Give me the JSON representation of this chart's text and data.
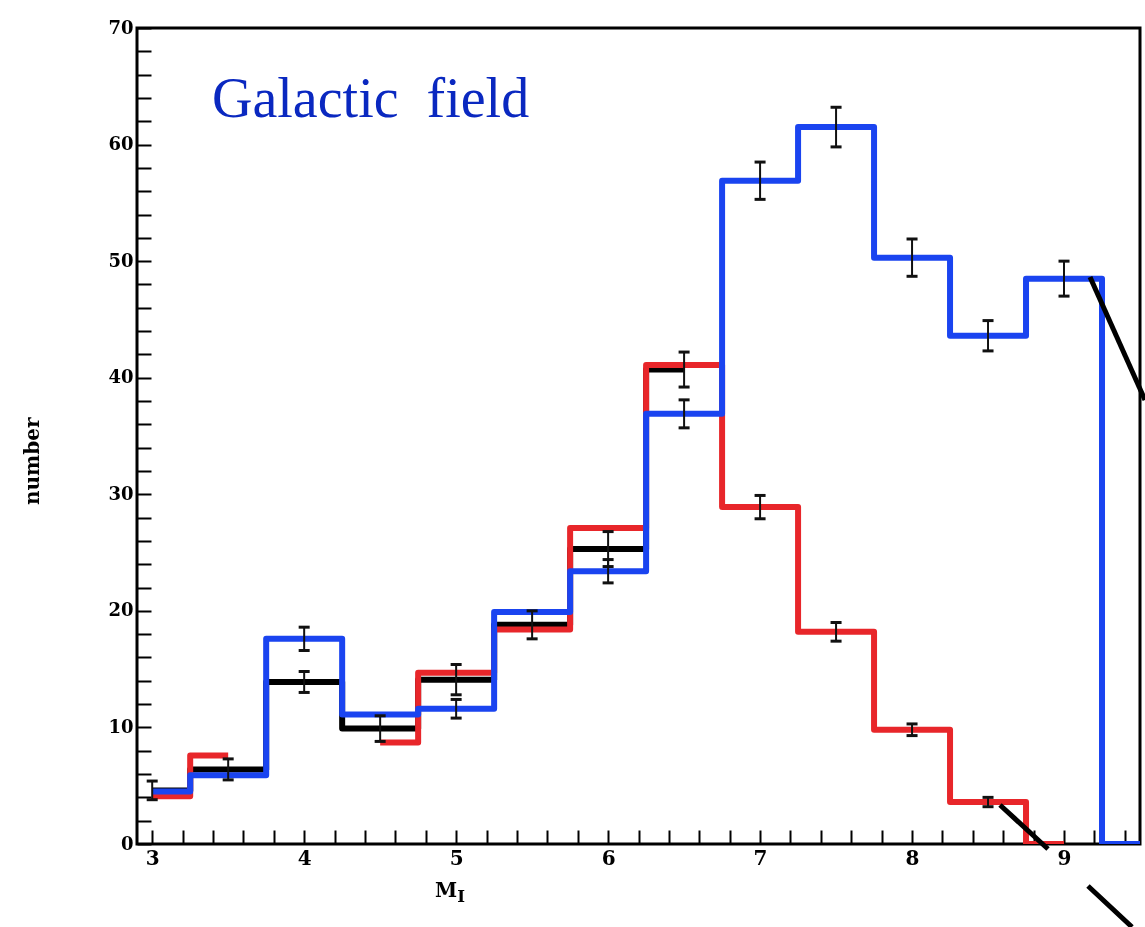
{
  "chart_data": {
    "type": "step",
    "xlabel": "M$_{I}$",
    "ylabel": "number",
    "annotations": [
      "Galactic  field"
    ],
    "x": [
      3,
      3.5,
      4,
      4.5,
      5,
      5.5,
      6,
      6.5,
      7,
      7.5,
      8,
      8.5,
      9,
      9.5
    ],
    "series": [
      {
        "color": "#000000",
        "values": [
          4.6,
          6.4,
          13.9,
          9.9,
          14.1,
          18.8,
          25.3,
          40.7,
          null,
          null,
          null,
          null,
          null,
          null
        ],
        "errors": [
          0.8,
          0.9,
          0.9,
          1.1,
          1.3,
          1.2,
          1.5,
          1.5,
          null,
          null,
          null,
          null,
          null,
          null
        ]
      },
      {
        "color": "#e8262a",
        "values": [
          4.1,
          7.6,
          null,
          8.7,
          14.7,
          18.4,
          27.1,
          41.1,
          28.9,
          18.2,
          9.8,
          3.6,
          0,
          null
        ],
        "errors": [
          null,
          null,
          null,
          null,
          null,
          null,
          null,
          null,
          1,
          0.8,
          0.5,
          0.4,
          null,
          null
        ]
      },
      {
        "color": "#1a44f0",
        "values": [
          4.5,
          5.9,
          17.6,
          11.1,
          11.6,
          19.9,
          23.4,
          36.9,
          56.9,
          61.5,
          50.3,
          43.6,
          48.5,
          0
        ],
        "errors": [
          null,
          null,
          1,
          null,
          0.8,
          null,
          1,
          1.2,
          1.6,
          1.7,
          1.6,
          1.3,
          1.5,
          null
        ]
      }
    ],
    "xlim": [
      2.9,
      9.5
    ],
    "xticks": [
      3,
      {
        "value": 3.2,
        "label": null
      },
      {
        "value": 3.4,
        "label": null
      },
      {
        "value": 3.6,
        "label": null
      },
      {
        "value": 3.8,
        "label": null
      },
      4,
      {
        "value": 4.2,
        "label": null
      },
      {
        "value": 4.4,
        "label": null
      },
      {
        "value": 4.6,
        "label": null
      },
      {
        "value": 4.8,
        "label": null
      },
      5,
      {
        "value": 5.2,
        "label": null
      },
      {
        "value": 5.4,
        "label": null
      },
      {
        "value": 5.6,
        "label": null
      },
      {
        "value": 5.8,
        "label": null
      },
      6,
      {
        "value": 6.2,
        "label": null
      },
      {
        "value": 6.4,
        "label": null
      },
      {
        "value": 6.6,
        "label": null
      },
      {
        "value": 6.8,
        "label": null
      },
      7,
      {
        "value": 7.2,
        "label": null
      },
      {
        "value": 7.4,
        "label": null
      },
      {
        "value": 7.6,
        "label": null
      },
      {
        "value": 7.8,
        "label": null
      },
      8,
      {
        "value": 8.2,
        "label": null
      },
      {
        "value": 8.4,
        "label": null
      },
      {
        "value": 8.6,
        "label": null
      },
      {
        "value": 8.8,
        "label": null
      },
      9,
      {
        "value": 9.2,
        "label": null
      },
      {
        "value": 9.4,
        "label": null
      }
    ],
    "ylim": [
      0,
      70
    ],
    "yticks": [
      0,
      {
        "value": 2,
        "label": null
      },
      {
        "value": 4,
        "label": null
      },
      {
        "value": 6,
        "label": null
      },
      {
        "value": 8,
        "label": null
      },
      10,
      {
        "value": 12,
        "label": null
      },
      {
        "value": 14,
        "label": null
      },
      {
        "value": 16,
        "label": null
      },
      {
        "value": 18,
        "label": null
      },
      20,
      {
        "value": 22,
        "label": null
      },
      {
        "value": 24,
        "label": null
      },
      {
        "value": 26,
        "label": null
      },
      {
        "value": 28,
        "label": null
      },
      30,
      {
        "value": 32,
        "label": null
      },
      {
        "value": 34,
        "label": null
      },
      {
        "value": 36,
        "label": null
      },
      {
        "value": 38,
        "label": null
      },
      40,
      {
        "value": 42,
        "label": null
      },
      {
        "value": 44,
        "label": null
      },
      {
        "value": 46,
        "label": null
      },
      {
        "value": 48,
        "label": null
      },
      50,
      {
        "value": 52,
        "label": null
      },
      {
        "value": 54,
        "label": null
      },
      {
        "value": 56,
        "label": null
      },
      {
        "value": 58,
        "label": null
      },
      60,
      {
        "value": 62,
        "label": null
      },
      {
        "value": 64,
        "label": null
      },
      {
        "value": 66,
        "label": null
      },
      {
        "value": 68,
        "label": null
      },
      70
    ]
  }
}
